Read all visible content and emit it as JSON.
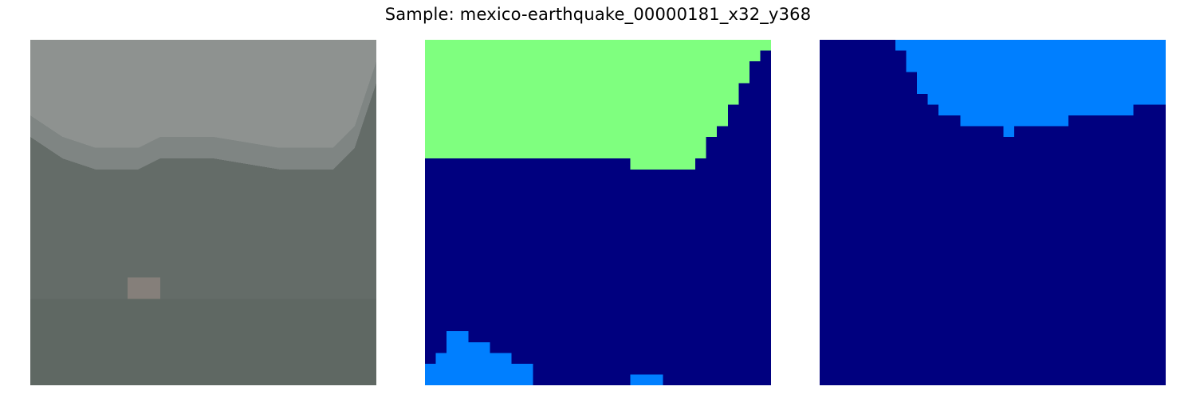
{
  "figure": {
    "title": "Sample: mexico-earthquake_00000181_x32_y368"
  },
  "panels": [
    {
      "kind": "satellite-image",
      "colors": {
        "roof": "#8e9290",
        "roof_shadow": "#7f8583",
        "ground": "#646c68",
        "ground_dark": "#5c6561",
        "spot": "#857f7a"
      }
    },
    {
      "kind": "segmentation-mask",
      "colors": {
        "background": "#00007f",
        "class_green": "#7fff7f",
        "class_blue": "#007fff"
      }
    },
    {
      "kind": "segmentation-mask",
      "colors": {
        "background": "#00007f",
        "class_blue": "#007fff"
      }
    }
  ]
}
